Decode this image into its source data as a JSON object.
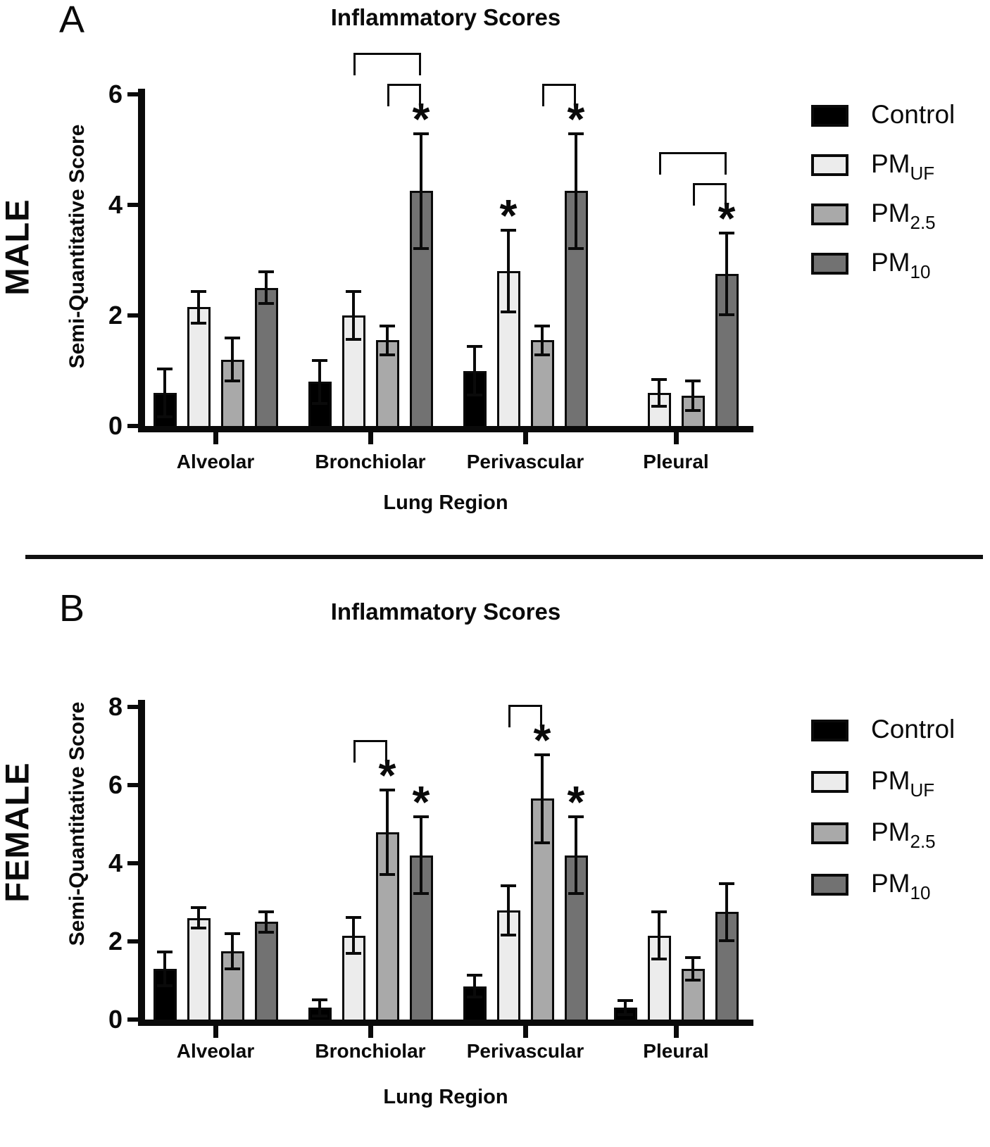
{
  "legend": {
    "position": "right",
    "items": [
      {
        "label": "Control",
        "sub": "",
        "color": "#000000"
      },
      {
        "label": "PM",
        "sub": "UF",
        "color": "#ececec"
      },
      {
        "label": "PM",
        "sub": "2.5",
        "color": "#a9a9a9"
      },
      {
        "label": "PM",
        "sub": "10",
        "color": "#727272"
      }
    ]
  },
  "chart_data": [
    {
      "type": "bar",
      "panel": "A",
      "sex": "MALE",
      "title": "Inflammatory Scores",
      "xlabel": "Lung Region",
      "ylabel": "Semi-Quantitative Score",
      "ylim": [
        0,
        6
      ],
      "yticks": [
        0,
        2,
        4,
        6
      ],
      "grid": false,
      "legend_position": "right",
      "legend": [
        "Control",
        "PM_UF",
        "PM_2.5",
        "PM_10"
      ],
      "error_bars": "symmetric, capped",
      "categories": [
        "Alveolar",
        "Bronchiolar",
        "Perivascular",
        "Pleural"
      ],
      "series": [
        {
          "name": "Control",
          "values": [
            0.6,
            0.8,
            1.0,
            null
          ],
          "errors": [
            0.45,
            0.4,
            0.45,
            null
          ]
        },
        {
          "name": "PM_UF",
          "values": [
            2.15,
            2.0,
            2.8,
            0.6
          ],
          "errors": [
            0.3,
            0.45,
            0.75,
            0.25
          ]
        },
        {
          "name": "PM_2.5",
          "values": [
            1.2,
            1.55,
            1.55,
            0.55
          ],
          "errors": [
            0.4,
            0.27,
            0.27,
            0.28
          ]
        },
        {
          "name": "PM_10",
          "values": [
            2.5,
            4.25,
            4.25,
            2.75
          ],
          "errors": [
            0.3,
            1.05,
            1.05,
            0.75
          ]
        }
      ],
      "stars": [
        {
          "category": "Bronchiolar",
          "series": "PM_10"
        },
        {
          "category": "Perivascular",
          "series": "PM_UF"
        },
        {
          "category": "Perivascular",
          "series": "PM_10"
        },
        {
          "category": "Pleural",
          "series": "PM_10"
        }
      ],
      "brackets": [
        {
          "category": "Bronchiolar",
          "from": "PM_UF",
          "to": "PM_10",
          "tier": 2
        },
        {
          "category": "Bronchiolar",
          "from": "PM_2.5",
          "to": "PM_10",
          "tier": 1
        },
        {
          "category": "Perivascular",
          "from": "PM_2.5",
          "to": "PM_10",
          "tier": 1
        },
        {
          "category": "Pleural",
          "from": "PM_UF",
          "to": "PM_10",
          "tier": 2
        },
        {
          "category": "Pleural",
          "from": "PM_2.5",
          "to": "PM_10",
          "tier": 1
        }
      ]
    },
    {
      "type": "bar",
      "panel": "B",
      "sex": "FEMALE",
      "title": "Inflammatory Scores",
      "xlabel": "Lung Region",
      "ylabel": "Semi-Quantitative Score",
      "ylim": [
        0,
        8
      ],
      "yticks": [
        0,
        2,
        4,
        6,
        8
      ],
      "grid": false,
      "legend_position": "right",
      "legend": [
        "Control",
        "PM_UF",
        "PM_2.5",
        "PM_10"
      ],
      "error_bars": "symmetric, capped",
      "categories": [
        "Alveolar",
        "Bronchiolar",
        "Perivascular",
        "Pleural"
      ],
      "series": [
        {
          "name": "Control",
          "values": [
            1.3,
            0.3,
            0.85,
            0.3
          ],
          "errors": [
            0.45,
            0.22,
            0.3,
            0.2
          ]
        },
        {
          "name": "PM_UF",
          "values": [
            2.6,
            2.15,
            2.8,
            2.15
          ],
          "errors": [
            0.28,
            0.48,
            0.65,
            0.62
          ]
        },
        {
          "name": "PM_2.5",
          "values": [
            1.75,
            4.8,
            5.65,
            1.3
          ],
          "errors": [
            0.47,
            1.1,
            1.15,
            0.3
          ]
        },
        {
          "name": "PM_10",
          "values": [
            2.5,
            4.2,
            4.2,
            2.75
          ],
          "errors": [
            0.28,
            1.0,
            1.0,
            0.75
          ]
        }
      ],
      "stars": [
        {
          "category": "Bronchiolar",
          "series": "PM_2.5"
        },
        {
          "category": "Bronchiolar",
          "series": "PM_10"
        },
        {
          "category": "Perivascular",
          "series": "PM_2.5"
        },
        {
          "category": "Perivascular",
          "series": "PM_10"
        }
      ],
      "brackets": [
        {
          "category": "Bronchiolar",
          "from": "PM_UF",
          "to": "PM_2.5",
          "tier": 1
        },
        {
          "category": "Perivascular",
          "from": "PM_UF",
          "to": "PM_2.5",
          "tier": 1
        }
      ]
    }
  ]
}
